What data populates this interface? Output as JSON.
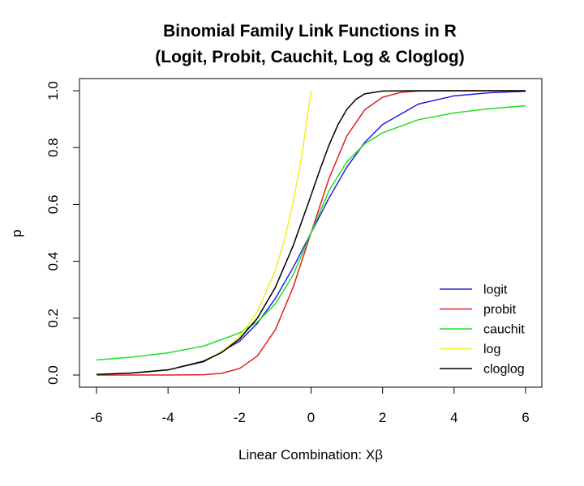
{
  "chart_data": {
    "type": "line",
    "title": [
      "Binomial Family Link Functions in R",
      "(Logit, Probit, Cauchit, Log & Cloglog)"
    ],
    "xlabel": "Linear Combination: Xβ",
    "ylabel": "p",
    "xlim": [
      -6,
      6
    ],
    "ylim": [
      0,
      1
    ],
    "xticks": [
      -6,
      -4,
      -2,
      0,
      2,
      4,
      6
    ],
    "xtick_labels": [
      "-6",
      "-4",
      "-2",
      "0",
      "2",
      "4",
      "6"
    ],
    "yticks": [
      0,
      0.2,
      0.4,
      0.6,
      0.8,
      1
    ],
    "ytick_labels": [
      "0.0",
      "0.2",
      "0.4",
      "0.6",
      "0.8",
      "1.0"
    ],
    "legend_position": "bottom-right",
    "grid": false,
    "series": [
      {
        "name": "logit",
        "color": "#2020e0",
        "x": [
          -6,
          -5,
          -4,
          -3,
          -2,
          -1.5,
          -1,
          -0.5,
          0,
          0.5,
          1,
          1.5,
          2,
          3,
          4,
          5,
          6
        ],
        "y": [
          0.002,
          0.007,
          0.018,
          0.047,
          0.119,
          0.182,
          0.269,
          0.378,
          0.5,
          0.622,
          0.731,
          0.818,
          0.881,
          0.953,
          0.982,
          0.993,
          0.998
        ]
      },
      {
        "name": "probit",
        "color": "#e02020",
        "x": [
          -6,
          -4,
          -3,
          -2.5,
          -2,
          -1.5,
          -1,
          -0.5,
          0,
          0.5,
          1,
          1.5,
          2,
          2.5,
          3,
          4,
          6
        ],
        "y": [
          0.0,
          0.0,
          0.001,
          0.006,
          0.023,
          0.067,
          0.159,
          0.309,
          0.5,
          0.691,
          0.841,
          0.933,
          0.977,
          0.994,
          0.999,
          1.0,
          1.0
        ]
      },
      {
        "name": "cauchit",
        "color": "#20e020",
        "x": [
          -6,
          -5,
          -4,
          -3,
          -2,
          -1.5,
          -1,
          -0.5,
          0,
          0.5,
          1,
          1.5,
          2,
          3,
          4,
          5,
          6
        ],
        "y": [
          0.053,
          0.063,
          0.078,
          0.102,
          0.148,
          0.187,
          0.25,
          0.352,
          0.5,
          0.648,
          0.75,
          0.813,
          0.852,
          0.898,
          0.922,
          0.937,
          0.947
        ]
      },
      {
        "name": "log",
        "color": "#f0f020",
        "x": [
          -6,
          -5,
          -4,
          -3,
          -2.5,
          -2,
          -1.5,
          -1,
          -0.75,
          -0.5,
          -0.25,
          0
        ],
        "y": [
          0.002,
          0.007,
          0.018,
          0.05,
          0.082,
          0.135,
          0.223,
          0.368,
          0.472,
          0.607,
          0.779,
          1.0
        ]
      },
      {
        "name": "cloglog",
        "color": "#000000",
        "x": [
          -6,
          -5,
          -4,
          -3,
          -2.5,
          -2,
          -1.5,
          -1,
          -0.5,
          0,
          0.25,
          0.5,
          0.75,
          1,
          1.25,
          1.5,
          2,
          3,
          6
        ],
        "y": [
          0.002,
          0.007,
          0.018,
          0.049,
          0.079,
          0.127,
          0.2,
          0.308,
          0.455,
          0.632,
          0.723,
          0.808,
          0.88,
          0.934,
          0.969,
          0.989,
          0.999,
          1.0,
          1.0
        ]
      }
    ]
  }
}
